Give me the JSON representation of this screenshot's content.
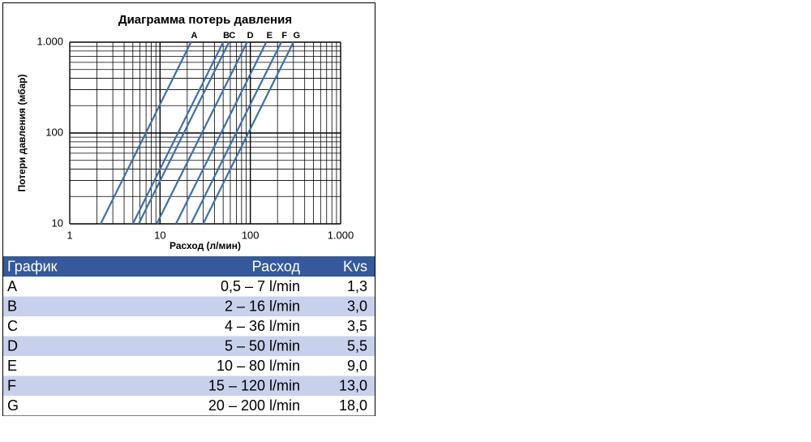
{
  "chart_data": {
    "type": "line",
    "title": "Диаграмма потерь давления",
    "x_label": "Расход (л/мин)",
    "y_label": "Потери давления (мбар)",
    "log_x": true,
    "log_y": true,
    "grid": true,
    "minor_grid": true,
    "xlim": [
      1,
      1000
    ],
    "ylim": [
      10,
      1000
    ],
    "xticks": [
      1,
      10,
      100,
      {
        "value": 1000,
        "label": "1.000"
      }
    ],
    "yticks": [
      10,
      100,
      {
        "value": 1000,
        "label": "1.000"
      }
    ],
    "series": [
      {
        "name": "A",
        "color": "#3d6fa6",
        "x": [
          2.2,
          22
        ],
        "values": [
          10,
          1000
        ]
      },
      {
        "name": "B",
        "color": "#3d6fa6",
        "x": [
          5,
          50
        ],
        "values": [
          10,
          1000
        ]
      },
      {
        "name": "C",
        "color": "#3d6fa6",
        "x": [
          5.8,
          58
        ],
        "values": [
          10,
          1000
        ]
      },
      {
        "name": "D",
        "color": "#3d6fa6",
        "x": [
          9.2,
          92
        ],
        "values": [
          10,
          1000
        ]
      },
      {
        "name": "E",
        "color": "#3d6fa6",
        "x": [
          15,
          150
        ],
        "values": [
          10,
          1000
        ]
      },
      {
        "name": "F",
        "color": "#3d6fa6",
        "x": [
          22,
          220
        ],
        "values": [
          10,
          1000
        ]
      },
      {
        "name": "G",
        "color": "#3d6fa6",
        "x": [
          30,
          300
        ],
        "values": [
          10,
          1000
        ]
      }
    ]
  },
  "table": {
    "header": [
      "График",
      "Расход",
      "Kvs"
    ],
    "rows": [
      [
        "A",
        "0,5 – 7 l/min",
        "1,3"
      ],
      [
        "B",
        "2 – 16 l/min",
        "3,0"
      ],
      [
        "C",
        "4 – 36 l/min",
        "3,5"
      ],
      [
        "D",
        "5 – 50 l/min",
        "5,5"
      ],
      [
        "E",
        "10 – 80 l/min",
        "9,0"
      ],
      [
        "F",
        "15 – 120 l/min",
        "13,0"
      ],
      [
        "G",
        "20 – 200 l/min",
        "18,0"
      ]
    ]
  }
}
